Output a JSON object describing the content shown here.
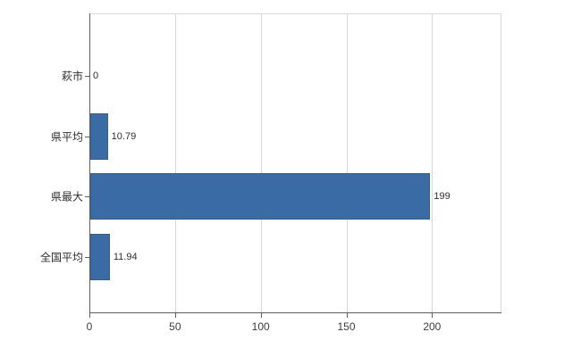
{
  "chart_data": {
    "type": "bar",
    "orientation": "horizontal",
    "title": "",
    "xlabel": "",
    "ylabel": "",
    "categories": [
      "萩市",
      "県平均",
      "県最大",
      "全国平均"
    ],
    "values": [
      0,
      10.79,
      199,
      11.94
    ],
    "value_labels": [
      "0",
      "10.79",
      "199",
      "11.94"
    ],
    "xlim": [
      0,
      240
    ],
    "xticks": [
      0,
      50,
      100,
      150,
      200
    ],
    "grid": true,
    "legend": "none",
    "bar_color": "#3A6BA5"
  },
  "colors": {
    "bar": "#3A6BA5",
    "bar_border": "#33608f",
    "axis": "#5f5f5f",
    "gridline": "#d9d9d9",
    "text": "#2e2e2e",
    "background": "#ffffff"
  }
}
